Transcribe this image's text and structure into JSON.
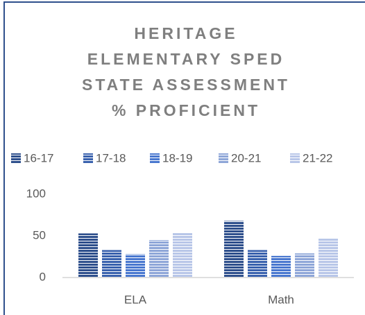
{
  "chart_data": {
    "type": "bar",
    "title": "HERITAGE ELEMENTARY SPED STATE ASSESSMENT % PROFICIENT",
    "categories": [
      "ELA",
      "Math"
    ],
    "series": [
      {
        "name": "16-17",
        "color": "#2e4f8c",
        "values": [
          53,
          68
        ]
      },
      {
        "name": "17-18",
        "color": "#3961ad",
        "values": [
          33,
          33
        ]
      },
      {
        "name": "18-19",
        "color": "#4877cf",
        "values": [
          28,
          26
        ]
      },
      {
        "name": "20-21",
        "color": "#8ea6d8",
        "values": [
          45,
          29
        ]
      },
      {
        "name": "21-22",
        "color": "#b8c6e8",
        "values": [
          54,
          47
        ]
      }
    ],
    "ylim": [
      0,
      100
    ],
    "yticks": [
      0,
      50,
      100
    ],
    "grid": false,
    "legend": "top"
  }
}
